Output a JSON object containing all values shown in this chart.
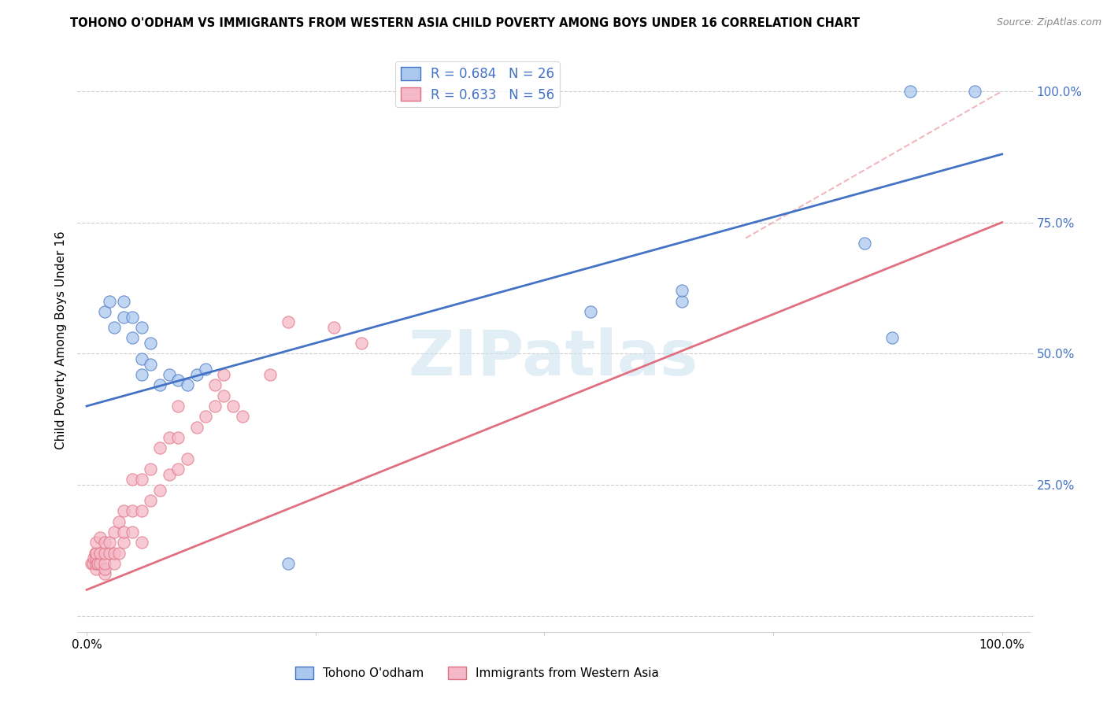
{
  "title": "TOHONO O'ODHAM VS IMMIGRANTS FROM WESTERN ASIA CHILD POVERTY AMONG BOYS UNDER 16 CORRELATION CHART",
  "source": "Source: ZipAtlas.com",
  "ylabel": "Child Poverty Among Boys Under 16",
  "legend_blue_label": "R = 0.684   N = 26",
  "legend_pink_label": "R = 0.633   N = 56",
  "blue_color": "#aac8ee",
  "pink_color": "#f5b8c8",
  "blue_line_color": "#4472c4",
  "pink_line_color": "#e07080",
  "ref_line_color": "#f0b0b8",
  "watermark": "ZIPatlas",
  "watermark_color": "#d0e4f0",
  "background_color": "#ffffff",
  "blue_scatter_x": [
    0.02,
    0.025,
    0.03,
    0.04,
    0.04,
    0.05,
    0.05,
    0.06,
    0.06,
    0.06,
    0.07,
    0.07,
    0.08,
    0.09,
    0.1,
    0.11,
    0.12,
    0.13,
    0.22,
    0.55,
    0.65,
    0.65,
    0.85,
    0.88,
    0.9,
    0.97
  ],
  "blue_scatter_y": [
    0.58,
    0.6,
    0.55,
    0.57,
    0.6,
    0.53,
    0.57,
    0.55,
    0.46,
    0.49,
    0.48,
    0.52,
    0.44,
    0.46,
    0.45,
    0.44,
    0.46,
    0.47,
    0.1,
    0.58,
    0.6,
    0.62,
    0.71,
    0.53,
    1.0,
    1.0
  ],
  "pink_scatter_x": [
    0.005,
    0.007,
    0.008,
    0.009,
    0.01,
    0.01,
    0.01,
    0.01,
    0.01,
    0.012,
    0.015,
    0.015,
    0.015,
    0.02,
    0.02,
    0.02,
    0.02,
    0.02,
    0.025,
    0.025,
    0.03,
    0.03,
    0.03,
    0.035,
    0.035,
    0.04,
    0.04,
    0.04,
    0.05,
    0.05,
    0.05,
    0.06,
    0.06,
    0.06,
    0.07,
    0.07,
    0.08,
    0.08,
    0.09,
    0.09,
    0.1,
    0.1,
    0.1,
    0.11,
    0.12,
    0.13,
    0.14,
    0.14,
    0.15,
    0.15,
    0.16,
    0.17,
    0.2,
    0.22,
    0.27,
    0.3
  ],
  "pink_scatter_y": [
    0.1,
    0.1,
    0.11,
    0.12,
    0.09,
    0.1,
    0.11,
    0.12,
    0.14,
    0.1,
    0.1,
    0.12,
    0.15,
    0.08,
    0.09,
    0.1,
    0.12,
    0.14,
    0.12,
    0.14,
    0.1,
    0.12,
    0.16,
    0.12,
    0.18,
    0.14,
    0.16,
    0.2,
    0.16,
    0.2,
    0.26,
    0.14,
    0.2,
    0.26,
    0.22,
    0.28,
    0.24,
    0.32,
    0.27,
    0.34,
    0.28,
    0.34,
    0.4,
    0.3,
    0.36,
    0.38,
    0.4,
    0.44,
    0.42,
    0.46,
    0.4,
    0.38,
    0.46,
    0.56,
    0.55,
    0.52
  ],
  "blue_line_x": [
    0.0,
    1.0
  ],
  "blue_line_y_start": 0.4,
  "blue_line_y_end": 0.88,
  "pink_line_x": [
    0.0,
    1.0
  ],
  "pink_line_y_start": 0.05,
  "pink_line_y_end": 0.75,
  "ref_line_x": [
    0.72,
    1.0
  ],
  "ref_line_y_start": 0.72,
  "ref_line_y_end": 1.0,
  "yticks": [
    0.0,
    0.25,
    0.5,
    0.75,
    1.0
  ],
  "ytick_labels": [
    "",
    "25.0%",
    "50.0%",
    "75.0%",
    "100.0%"
  ],
  "xticks": [
    0.0,
    0.25,
    0.5,
    0.75,
    1.0
  ],
  "xtick_labels": [
    "0.0%",
    "",
    "",
    "",
    "100.0%"
  ]
}
